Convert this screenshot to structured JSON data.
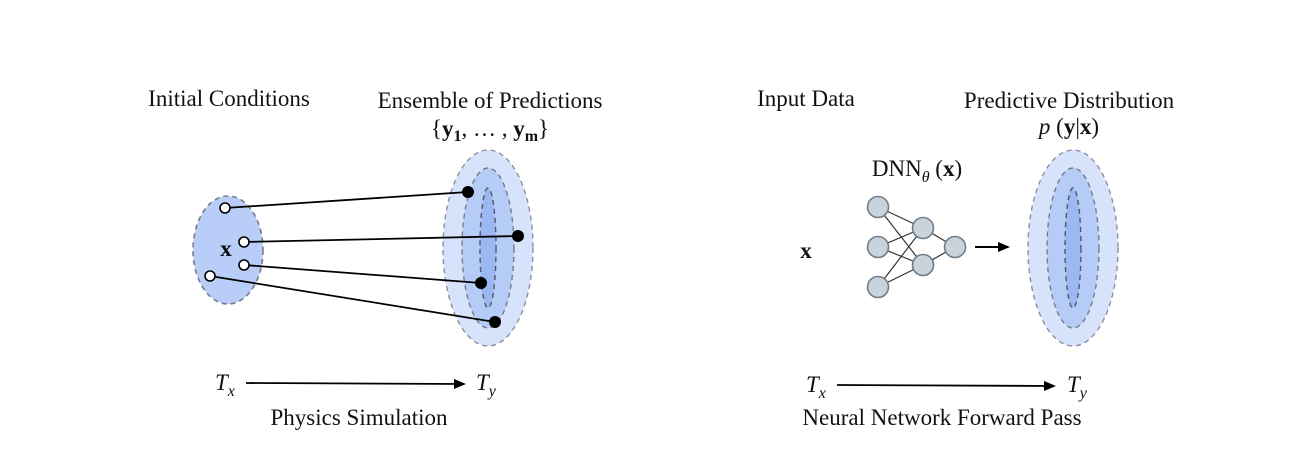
{
  "left_panel": {
    "initial_conditions_label": "Initial Conditions",
    "ensemble_label": "Ensemble of Predictions",
    "ensemble_set": {
      "open": "{",
      "y1_base": "y",
      "y1_sub": "1",
      "sep": ", … , ",
      "ym_base": "y",
      "ym_sub": "m",
      "close": "}"
    },
    "x_label": "x",
    "axis_start": "T",
    "axis_start_sub": "x",
    "axis_end": "T",
    "axis_end_sub": "y",
    "caption": "Physics Simulation"
  },
  "right_panel": {
    "input_label": "Input Data",
    "distribution_label": "Predictive Distribution",
    "dist_formula": {
      "p": "p",
      "open": " (",
      "y": "y",
      "bar": "|",
      "x": "x",
      "close": ")"
    },
    "dnn_label": {
      "name": "DNN",
      "theta": "θ",
      "open": " (",
      "x": "x",
      "close": ")"
    },
    "x_label": "x",
    "axis_start": "T",
    "axis_start_sub": "x",
    "axis_end": "T",
    "axis_end_sub": "y",
    "caption": "Neural Network Forward Pass"
  },
  "colors": {
    "region_fill": "#b8cdf8",
    "dist_outer": "#d7e3fb",
    "dist_mid": "#b5ccf7",
    "dist_inner": "#9bb8f3",
    "dash_stroke": "#7a7a8a",
    "node_fill": "#c9d3dc",
    "node_stroke": "#6f7d88"
  }
}
